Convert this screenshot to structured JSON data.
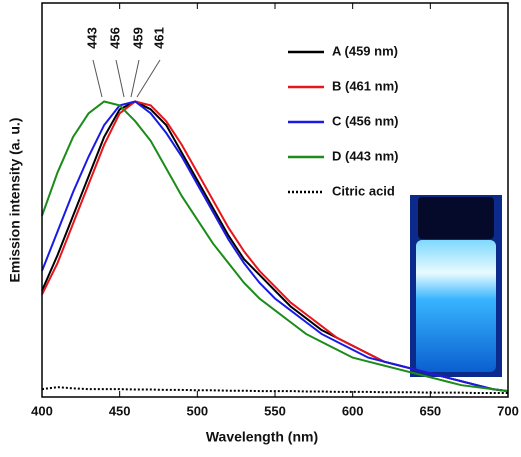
{
  "chart_data": {
    "type": "line",
    "x_label": "Wavelength (nm)",
    "y_label": "Emission intensity (a. u.)",
    "xlim": [
      400,
      700
    ],
    "xticks": [
      400,
      450,
      500,
      550,
      600,
      650,
      700
    ],
    "ylim": [
      0,
      1
    ],
    "legend": "upper right",
    "annotations": [
      "443",
      "456",
      "459",
      "461"
    ],
    "x": [
      400,
      410,
      420,
      430,
      440,
      450,
      460,
      470,
      480,
      490,
      500,
      510,
      520,
      530,
      540,
      550,
      560,
      570,
      580,
      590,
      600,
      610,
      620,
      630,
      640,
      650,
      660,
      670,
      680,
      690,
      700
    ],
    "series": [
      {
        "name": "A (459 nm)",
        "color": "#000000",
        "dash": false,
        "values": [
          0.27,
          0.36,
          0.46,
          0.56,
          0.66,
          0.73,
          0.75,
          0.73,
          0.69,
          0.62,
          0.55,
          0.48,
          0.41,
          0.35,
          0.31,
          0.27,
          0.23,
          0.2,
          0.17,
          0.15,
          0.13,
          0.11,
          0.09,
          0.08,
          0.07,
          0.06,
          0.05,
          0.04,
          0.03,
          0.02,
          0.015
        ]
      },
      {
        "name": "B (461 nm)",
        "color": "#e8151b",
        "dash": false,
        "values": [
          0.26,
          0.34,
          0.44,
          0.54,
          0.64,
          0.72,
          0.75,
          0.74,
          0.7,
          0.64,
          0.57,
          0.5,
          0.43,
          0.37,
          0.32,
          0.28,
          0.24,
          0.21,
          0.18,
          0.15,
          0.13,
          0.11,
          0.09,
          0.08,
          0.07,
          0.06,
          0.05,
          0.04,
          0.03,
          0.02,
          0.015
        ]
      },
      {
        "name": "C (456 nm)",
        "color": "#1a1ae6",
        "dash": false,
        "values": [
          0.32,
          0.42,
          0.52,
          0.61,
          0.69,
          0.74,
          0.75,
          0.72,
          0.67,
          0.61,
          0.54,
          0.47,
          0.4,
          0.34,
          0.29,
          0.25,
          0.22,
          0.19,
          0.16,
          0.14,
          0.12,
          0.1,
          0.09,
          0.08,
          0.07,
          0.06,
          0.05,
          0.04,
          0.03,
          0.02,
          0.015
        ]
      },
      {
        "name": "D (443 nm)",
        "color": "#1a8c1a",
        "dash": false,
        "values": [
          0.46,
          0.57,
          0.66,
          0.72,
          0.75,
          0.74,
          0.7,
          0.65,
          0.58,
          0.51,
          0.45,
          0.39,
          0.34,
          0.29,
          0.25,
          0.22,
          0.19,
          0.16,
          0.14,
          0.12,
          0.1,
          0.09,
          0.08,
          0.07,
          0.06,
          0.05,
          0.04,
          0.03,
          0.025,
          0.02,
          0.015
        ]
      },
      {
        "name": "Citric acid",
        "color": "#000000",
        "dash": true,
        "values": [
          0.02,
          0.025,
          0.022,
          0.02,
          0.02,
          0.02,
          0.019,
          0.019,
          0.018,
          0.018,
          0.017,
          0.017,
          0.016,
          0.016,
          0.015,
          0.015,
          0.015,
          0.014,
          0.014,
          0.013,
          0.013,
          0.013,
          0.012,
          0.012,
          0.012,
          0.011,
          0.011,
          0.011,
          0.01,
          0.01,
          0.01
        ]
      }
    ]
  }
}
